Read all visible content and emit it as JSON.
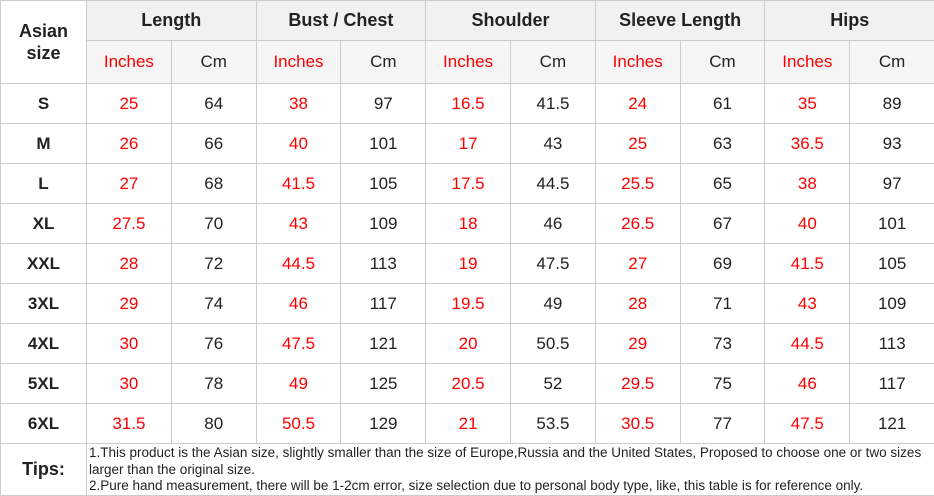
{
  "chart_data": {
    "type": "table",
    "corner_header": "Asian size",
    "column_groups": [
      "Length",
      "Bust / Chest",
      "Shoulder",
      "Sleeve Length",
      "Hips"
    ],
    "unit_labels": [
      "Inches",
      "Cm"
    ],
    "rows": [
      {
        "size": "S",
        "values": [
          "25",
          "64",
          "38",
          "97",
          "16.5",
          "41.5",
          "24",
          "61",
          "35",
          "89"
        ]
      },
      {
        "size": "M",
        "values": [
          "26",
          "66",
          "40",
          "101",
          "17",
          "43",
          "25",
          "63",
          "36.5",
          "93"
        ]
      },
      {
        "size": "L",
        "values": [
          "27",
          "68",
          "41.5",
          "105",
          "17.5",
          "44.5",
          "25.5",
          "65",
          "38",
          "97"
        ]
      },
      {
        "size": "XL",
        "values": [
          "27.5",
          "70",
          "43",
          "109",
          "18",
          "46",
          "26.5",
          "67",
          "40",
          "101"
        ]
      },
      {
        "size": "XXL",
        "values": [
          "28",
          "72",
          "44.5",
          "113",
          "19",
          "47.5",
          "27",
          "69",
          "41.5",
          "105"
        ]
      },
      {
        "size": "3XL",
        "values": [
          "29",
          "74",
          "46",
          "117",
          "19.5",
          "49",
          "28",
          "71",
          "43",
          "109"
        ]
      },
      {
        "size": "4XL",
        "values": [
          "30",
          "76",
          "47.5",
          "121",
          "20",
          "50.5",
          "29",
          "73",
          "44.5",
          "113"
        ]
      },
      {
        "size": "5XL",
        "values": [
          "30",
          "78",
          "49",
          "125",
          "20.5",
          "52",
          "29.5",
          "75",
          "46",
          "117"
        ]
      },
      {
        "size": "6XL",
        "values": [
          "31.5",
          "80",
          "50.5",
          "129",
          "21",
          "53.5",
          "30.5",
          "77",
          "47.5",
          "121"
        ]
      }
    ],
    "tips_label": "Tips:",
    "tips_lines": [
      "1.This product is the Asian size, slightly smaller than the size of Europe,Russia and the United States, Proposed to choose one or two sizes larger than the original size.",
      "2.Pure hand measurement, there will be 1-2cm error, size selection due to personal body type, like, this table is for reference only."
    ],
    "colors": {
      "inches_text": "#fe0000",
      "cm_text": "#222222",
      "group_header_bg": "#f1f1f1",
      "unit_header_bg": "#f5f5f5",
      "border": "#cccccc"
    }
  }
}
